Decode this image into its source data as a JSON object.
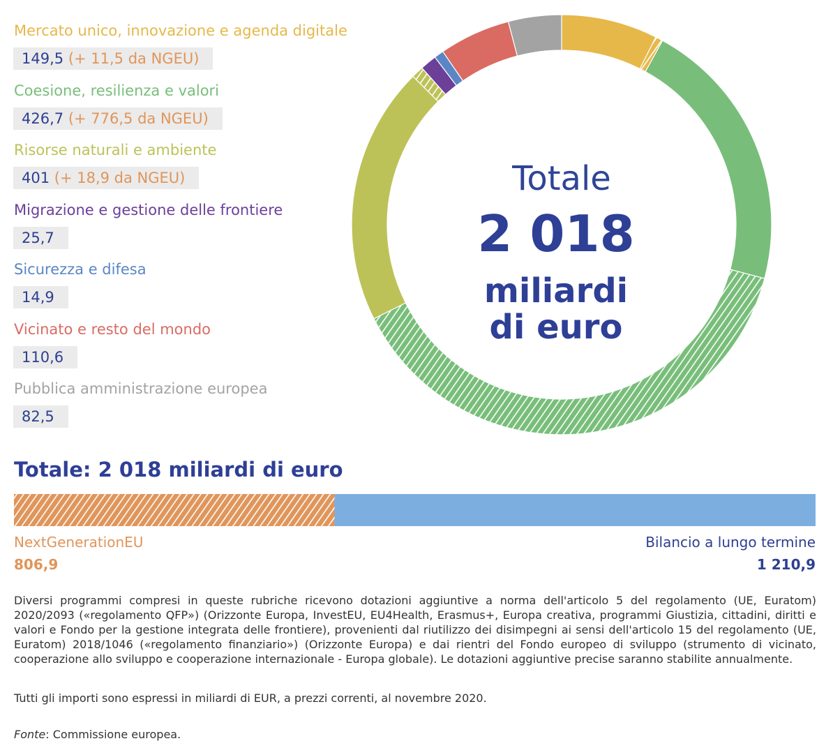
{
  "chart_data": [
    {
      "type": "donut",
      "categories": [
        "Mercato unico, innovazione e agenda digitale",
        "Coesione, resilienza e valori",
        "Risorse naturali e ambiente",
        "Migrazione e gestione delle frontiere",
        "Sicurezza e difesa",
        "Vicinato e resto del mondo",
        "Pubblica amministrazione europea"
      ],
      "colors": [
        "#e6b84a",
        "#78be7a",
        "#bcc258",
        "#6c3f99",
        "#5a86c5",
        "#d96b63",
        "#a3a3a3"
      ],
      "values": [
        149.5,
        426.7,
        401,
        25.7,
        14.9,
        110.6,
        82.5
      ],
      "value_labels": [
        "149,5",
        "426,7",
        "401",
        "25,7",
        "14,9",
        "110,6",
        "82,5"
      ],
      "ngeu_values": [
        11.5,
        776.5,
        18.9,
        null,
        null,
        null,
        null
      ],
      "ngeu_labels": [
        "(+ 11,5 da NGEU)",
        "(+ 776,5 da NGEU)",
        "(+ 18,9 da NGEU)",
        null,
        null,
        null,
        null
      ],
      "center_text": [
        "Totale",
        "2 018",
        "miliardi",
        "di euro"
      ]
    },
    {
      "type": "stacked_bar",
      "title": "Totale: 2 018 miliardi di euro",
      "xlim": [
        0,
        2017.8
      ],
      "series": [
        {
          "name": "NextGenerationEU",
          "color": "#e0955a",
          "hatched": true,
          "values": [
            806.9
          ],
          "value_labels": [
            "806,9"
          ]
        },
        {
          "name": "Bilancio a lungo termine",
          "color": "#7daee0",
          "hatched": false,
          "values": [
            1210.9
          ],
          "value_labels": [
            "1 210,9"
          ]
        }
      ]
    }
  ],
  "notes": [
    "Diversi programmi compresi in queste rubriche ricevono dotazioni aggiuntive a norma dell'articolo 5 del regolamento (UE, Euratom) 2020/2093 («regolamento QFP») (Orizzonte Europa, InvestEU, EU4Health, Erasmus+, Europa creativa, programmi Giustizia, cittadini, diritti e valori e Fondo per la gestione integrata delle frontiere), provenienti dal riutilizzo dei disimpegni ai sensi dell'articolo 15 del regolamento (UE, Euratom) 2018/1046 («regolamento finanziario») (Orizzonte Europa) e dai rientri del Fondo europeo di sviluppo (strumento di vicinato, cooperazione allo sviluppo e cooperazione internazionale - Europa globale). Le dotazioni aggiuntive precise saranno stabilite annualmente.",
    "Tutti gli importi sono espressi in miliardi di EUR, a prezzi correnti, al novembre 2020."
  ],
  "source": {
    "label": "Fonte",
    "text": ": Commissione europea."
  }
}
